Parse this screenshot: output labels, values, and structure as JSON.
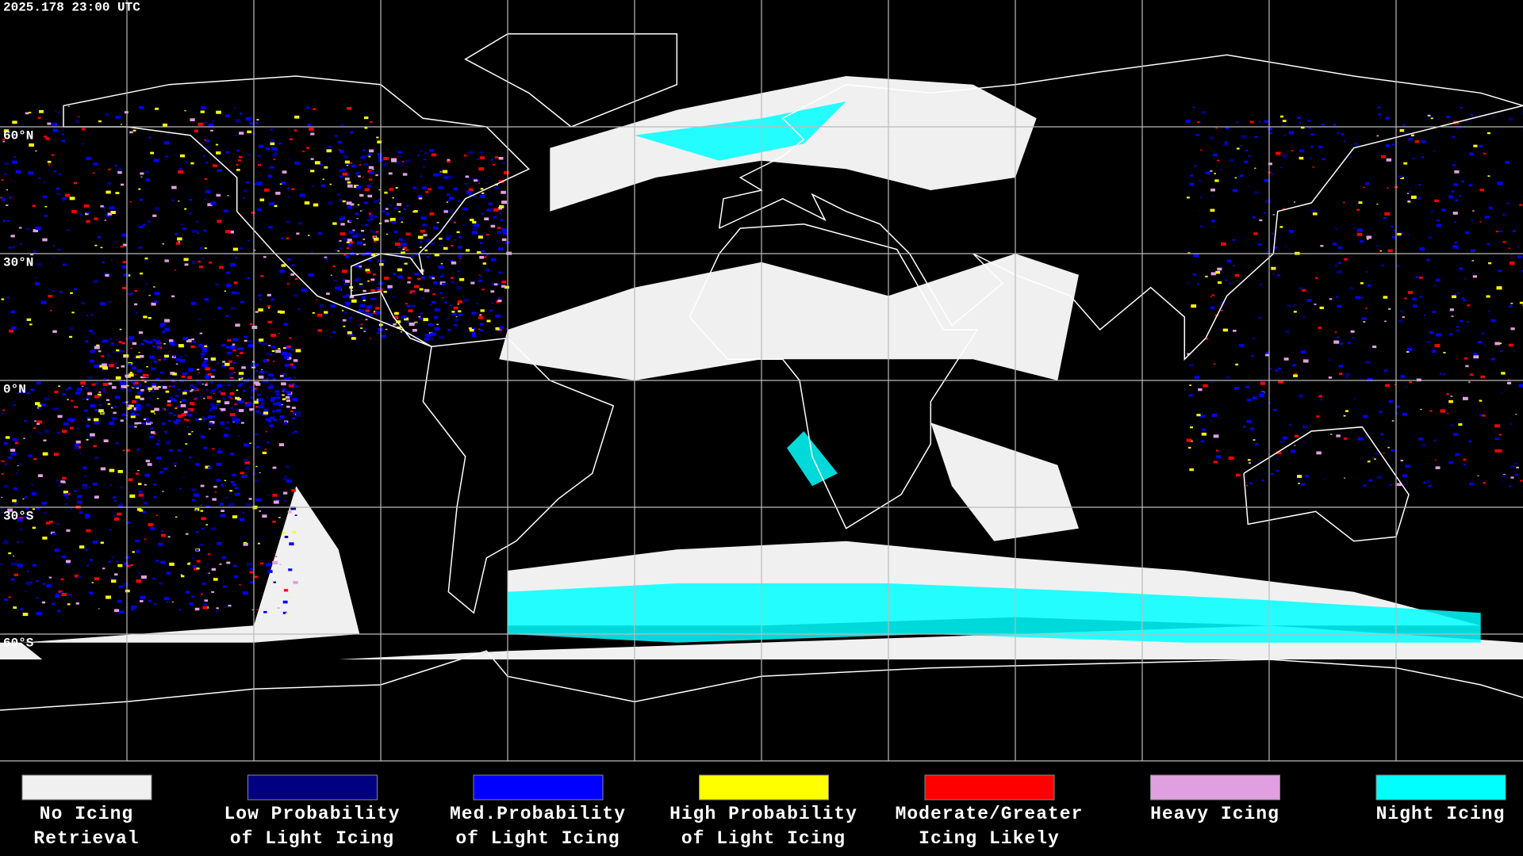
{
  "header": {
    "timestamp": "2025.178 23:00 UTC"
  },
  "map": {
    "lat_labels": [
      "60°N",
      "30°N",
      "0°N",
      "30°S",
      "60°S"
    ]
  },
  "legend": {
    "items": [
      {
        "label": [
          "No Icing",
          "Retrieval"
        ],
        "color": "#f0f0f0"
      },
      {
        "label": [
          "Low Probability",
          "of Light Icing"
        ],
        "color": "#000080"
      },
      {
        "label": [
          "Med.Probability",
          "of Light Icing"
        ],
        "color": "#0000ff"
      },
      {
        "label": [
          "High Probability",
          "of Light Icing"
        ],
        "color": "#ffff00"
      },
      {
        "label": [
          "Moderate/Greater",
          "Icing Likely"
        ],
        "color": "#ff0000"
      },
      {
        "label": [
          "Heavy Icing",
          ""
        ],
        "color": "#e0a0e0"
      },
      {
        "label": [
          "Night Icing",
          ""
        ],
        "color": "#00ffff"
      }
    ]
  }
}
